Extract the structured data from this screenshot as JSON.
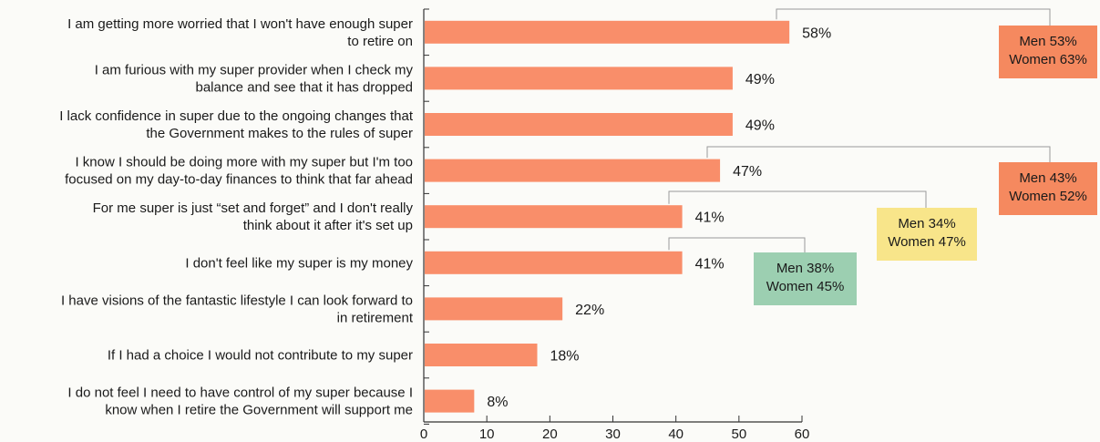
{
  "chart_data": {
    "type": "bar",
    "orientation": "horizontal",
    "categories": [
      [
        "I am getting more worried that I won't have enough super",
        "to retire on"
      ],
      [
        "I am furious with my super provider when I check my",
        "balance and see that it has dropped"
      ],
      [
        "I lack confidence in super due to the ongoing changes that",
        "the Government makes to the rules of super"
      ],
      [
        "I know I should be doing more with my super but I'm too",
        "focused on my day-to-day finances to think that far ahead"
      ],
      [
        "For me super is just “set and forget” and I don't really",
        "think about it after it's set up"
      ],
      [
        "I don't feel like my super is my money"
      ],
      [
        "I have visions of the fantastic lifestyle I can look forward to",
        "in retirement"
      ],
      [
        "If I had a choice I would not contribute to my super"
      ],
      [
        "I do not feel I need to have control of my super because I",
        "know when I retire the Government will support me"
      ]
    ],
    "values": [
      58,
      49,
      49,
      47,
      41,
      41,
      22,
      18,
      8
    ],
    "value_labels": [
      "58%",
      "49%",
      "49%",
      "47%",
      "41%",
      "41%",
      "22%",
      "18%",
      "8%"
    ],
    "bar_color": "#f98e6a",
    "xlim": [
      0,
      60
    ],
    "xticks": [
      0,
      10,
      20,
      30,
      40,
      50,
      60
    ],
    "xlabel": "",
    "ylabel": "",
    "title": "",
    "grid": false,
    "callouts": [
      {
        "row": 0,
        "lines": [
          "Men 53%",
          "Women 63%"
        ],
        "color": "#f5895f"
      },
      {
        "row": 3,
        "lines": [
          "Men 43%",
          "Women 52%"
        ],
        "color": "#f5895f"
      },
      {
        "row": 4,
        "lines": [
          "Men 34%",
          "Women 47%"
        ],
        "color": "#f8e58a"
      },
      {
        "row": 5,
        "lines": [
          "Men 38%",
          "Women 45%"
        ],
        "color": "#9ccfb1"
      }
    ]
  }
}
